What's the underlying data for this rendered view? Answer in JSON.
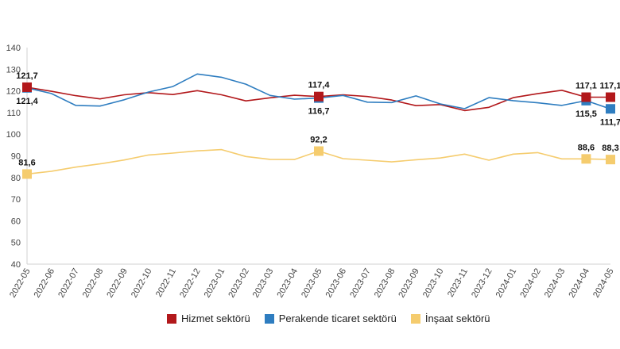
{
  "chart_data": {
    "type": "line",
    "categories": [
      "2022-05",
      "2022-06",
      "2022-07",
      "2022-08",
      "2022-09",
      "2022-10",
      "2022-11",
      "2022-12",
      "2023-01",
      "2023-02",
      "2023-03",
      "2023-04",
      "2023-05",
      "2023-06",
      "2023-07",
      "2023-08",
      "2023-09",
      "2023-10",
      "2023-11",
      "2023-12",
      "2024-01",
      "2024-02",
      "2024-03",
      "2024-04",
      "2024-05"
    ],
    "ylim": [
      40,
      140
    ],
    "yticks": [
      40,
      50,
      60,
      70,
      80,
      90,
      100,
      110,
      120,
      130,
      140
    ],
    "grid": false,
    "legend_position": "bottom",
    "series": [
      {
        "name": "Hizmet sektörü",
        "color": "#b2181b",
        "values": [
          121.7,
          119.8,
          117.8,
          116.3,
          118.2,
          119.2,
          118.3,
          120.1,
          118.2,
          115.4,
          116.8,
          118.0,
          117.4,
          118.2,
          117.4,
          115.8,
          113.2,
          113.7,
          110.9,
          112.4,
          116.9,
          118.7,
          120.3,
          117.1,
          117.1
        ],
        "labels": [
          {
            "index": 0,
            "text": "121,7",
            "pos": "above"
          },
          {
            "index": 12,
            "text": "117,4",
            "pos": "above"
          },
          {
            "index": 23,
            "text": "117,1",
            "pos": "above"
          },
          {
            "index": 24,
            "text": "117,1",
            "pos": "above"
          }
        ],
        "markers": [
          0,
          12,
          23,
          24
        ]
      },
      {
        "name": "Perakende ticaret sektörü",
        "color": "#2e7dc0",
        "values": [
          121.4,
          118.8,
          113.3,
          113.0,
          115.9,
          119.5,
          122.0,
          127.8,
          126.3,
          123.1,
          117.9,
          116.2,
          116.7,
          117.9,
          114.8,
          114.6,
          117.7,
          114.0,
          111.8,
          116.9,
          115.5,
          114.5,
          113.3,
          115.5,
          111.7
        ],
        "labels": [
          {
            "index": 0,
            "text": "121,4",
            "pos": "below"
          },
          {
            "index": 12,
            "text": "116,7",
            "pos": "below"
          },
          {
            "index": 23,
            "text": "115,5",
            "pos": "below"
          },
          {
            "index": 24,
            "text": "111,7",
            "pos": "below"
          }
        ],
        "markers": [
          0,
          12,
          23,
          24
        ]
      },
      {
        "name": "İnşaat sektörü",
        "color": "#f5cc6e",
        "values": [
          81.6,
          82.9,
          84.8,
          86.3,
          88.1,
          90.4,
          91.3,
          92.3,
          92.9,
          89.7,
          88.4,
          88.3,
          92.2,
          88.7,
          88.0,
          87.2,
          88.2,
          89.0,
          90.8,
          88.0,
          90.8,
          91.5,
          88.6,
          88.6,
          88.3
        ],
        "labels": [
          {
            "index": 0,
            "text": "81,6",
            "pos": "above"
          },
          {
            "index": 12,
            "text": "92,2",
            "pos": "above"
          },
          {
            "index": 23,
            "text": "88,6",
            "pos": "above"
          },
          {
            "index": 24,
            "text": "88,3",
            "pos": "above"
          }
        ],
        "markers": [
          0,
          12,
          23,
          24
        ]
      }
    ]
  }
}
